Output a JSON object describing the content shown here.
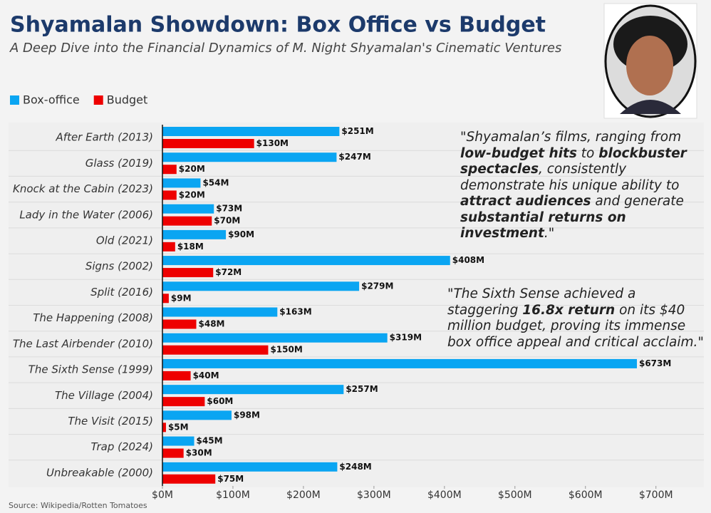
{
  "chart_data": {
    "type": "hbar",
    "title": "Shyamalan Showdown: Box Office vs Budget",
    "subtitle": "A Deep Dive into the Financial Dynamics of M. Night Shyamalan's Cinematic Ventures",
    "source": "Source: Wikipedia/Rotten Tomatoes",
    "categories": [
      "After Earth (2013)",
      "Glass (2019)",
      "Knock at the Cabin (2023)",
      "Lady in the Water (2006)",
      "Old (2021)",
      "Signs (2002)",
      "Split (2016)",
      "The Happening (2008)",
      "The Last Airbender (2010)",
      "The Sixth Sense (1999)",
      "The Village (2004)",
      "The Visit (2015)",
      "Trap (2024)",
      "Unbreakable (2000)"
    ],
    "series": [
      {
        "name": "Box-office",
        "color": "#0aa5f2",
        "values": [
          251,
          247,
          54,
          73,
          90,
          408,
          279,
          163,
          319,
          673,
          257,
          98,
          45,
          248
        ],
        "value_labels": [
          "$251M",
          "$247M",
          "$54M",
          "$73M",
          "$90M",
          "$408M",
          "$279M",
          "$163M",
          "$319M",
          "$673M",
          "$257M",
          "$98M",
          "$45M",
          "$248M"
        ]
      },
      {
        "name": "Budget",
        "color": "#ee0000",
        "values": [
          130,
          20,
          20,
          70,
          18,
          72,
          9,
          48,
          150,
          40,
          60,
          5,
          30,
          75
        ],
        "value_labels": [
          "$130M",
          "$20M",
          "$20M",
          "$70M",
          "$18M",
          "$72M",
          "$9M",
          "$48M",
          "$150M",
          "$40M",
          "$60M",
          "$5M",
          "$30M",
          "$75M"
        ]
      }
    ],
    "xlim": [
      0,
      768
    ],
    "xticks": [
      {
        "value": 0,
        "label": "$0M"
      },
      {
        "value": 100,
        "label": "$100M"
      },
      {
        "value": 200,
        "label": "$200M"
      },
      {
        "value": 300,
        "label": "$300M"
      },
      {
        "value": 400,
        "label": "$400M"
      },
      {
        "value": 500,
        "label": "$500M"
      },
      {
        "value": 600,
        "label": "$600M"
      },
      {
        "value": 700,
        "label": "$700M"
      }
    ],
    "legend": "top-left",
    "annotations": [
      {
        "runs": [
          {
            "text": "\"Shyamalan’s films, ranging from ",
            "bold": false
          },
          {
            "text": "low-budget hits",
            "bold": true
          },
          {
            "text": " to ",
            "bold": false
          },
          {
            "text": "blockbuster spectacles",
            "bold": true
          },
          {
            "text": ", consistently demonstrate his unique ability to ",
            "bold": false
          },
          {
            "text": "attract audiences",
            "bold": true
          },
          {
            "text": " and generate ",
            "bold": false
          },
          {
            "text": "substantial returns on investment",
            "bold": true
          },
          {
            "text": ".\"",
            "bold": false
          }
        ]
      },
      {
        "runs": [
          {
            "text": "\"The Sixth Sense achieved a staggering ",
            "bold": false
          },
          {
            "text": "16.8x return",
            "bold": true
          },
          {
            "text": " on its $40 million budget, proving its immense box office appeal and critical acclaim.\"",
            "bold": false
          }
        ]
      }
    ]
  }
}
